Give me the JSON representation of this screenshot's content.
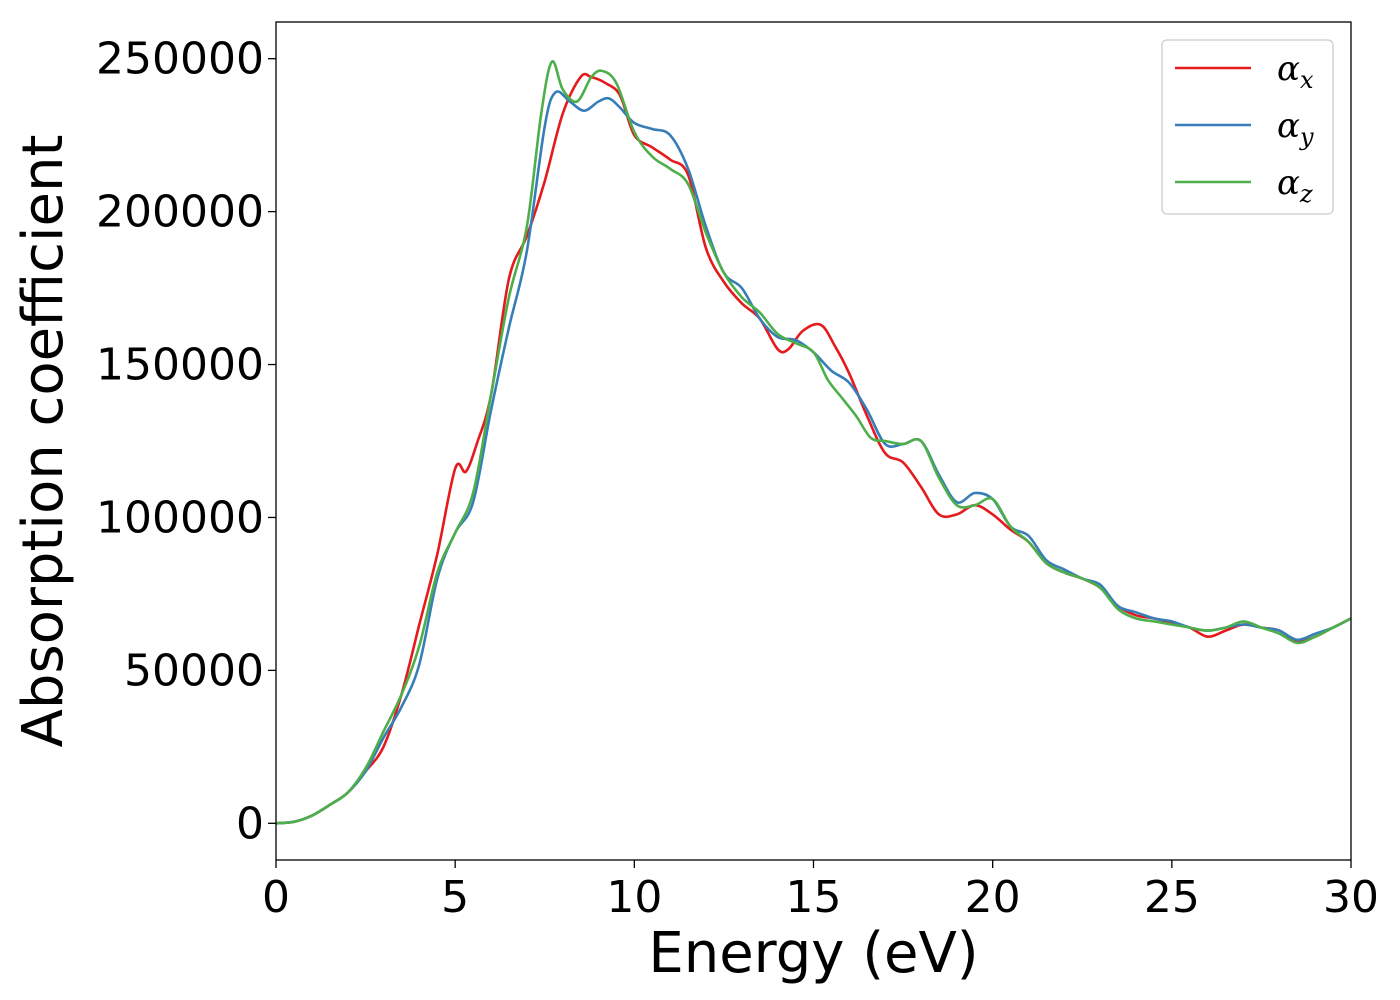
{
  "chart_data": {
    "type": "line",
    "xlabel": "Energy (eV)",
    "ylabel": "Absorption coefficient",
    "xlim": [
      0,
      30
    ],
    "ylim": [
      -12000,
      262000
    ],
    "xticks": [
      0,
      5,
      10,
      15,
      20,
      25,
      30
    ],
    "yticks": [
      0,
      50000,
      100000,
      150000,
      200000,
      250000
    ],
    "grid": false,
    "legend_position": "top-right",
    "series": [
      {
        "name": "α",
        "subscript": "x",
        "color": "#e41a1c",
        "x": [
          0,
          0.5,
          1.0,
          1.5,
          2.0,
          2.5,
          3.0,
          3.5,
          4.0,
          4.5,
          5.0,
          5.3,
          5.6,
          6.0,
          6.5,
          7.0,
          7.5,
          8.0,
          8.5,
          8.8,
          9.2,
          9.6,
          10.0,
          10.5,
          11.0,
          11.5,
          12.0,
          12.5,
          13.0,
          13.5,
          14.0,
          14.3,
          14.7,
          15.2,
          15.6,
          16.0,
          16.5,
          17.0,
          17.5,
          18.0,
          18.5,
          19.0,
          19.5,
          20.0,
          20.5,
          21.0,
          21.5,
          22.0,
          22.5,
          23.0,
          23.5,
          24.0,
          24.5,
          25.0,
          25.5,
          26.0,
          26.5,
          27.0,
          27.5,
          28.0,
          28.5,
          29.0,
          29.5,
          30.0
        ],
        "y": [
          0,
          500,
          2500,
          6000,
          10000,
          17000,
          25000,
          42000,
          65000,
          88000,
          116000,
          115000,
          124000,
          140000,
          178000,
          192000,
          210000,
          232000,
          244000,
          244000,
          242000,
          238000,
          225000,
          221000,
          217000,
          212000,
          188000,
          177000,
          170000,
          165000,
          155000,
          155000,
          161000,
          163000,
          156000,
          147000,
          133000,
          121000,
          118000,
          110000,
          101000,
          101000,
          104000,
          101000,
          96000,
          92000,
          85000,
          82000,
          80000,
          77000,
          71000,
          68000,
          67000,
          65500,
          64000,
          61000,
          63000,
          65000,
          64000,
          63000,
          59500,
          61000,
          64000,
          67000
        ]
      },
      {
        "name": "α",
        "subscript": "y",
        "color": "#377eb8",
        "x": [
          0,
          0.5,
          1.0,
          1.5,
          2.0,
          2.5,
          3.0,
          3.5,
          4.0,
          4.5,
          5.0,
          5.5,
          6.0,
          6.5,
          7.0,
          7.5,
          7.8,
          8.2,
          8.6,
          9.0,
          9.3,
          9.6,
          10.0,
          10.5,
          11.0,
          11.5,
          12.0,
          12.5,
          13.0,
          13.5,
          14.0,
          14.5,
          15.0,
          15.5,
          16.0,
          16.5,
          17.0,
          17.5,
          18.0,
          18.5,
          19.0,
          19.5,
          20.0,
          20.5,
          21.0,
          21.5,
          22.0,
          22.5,
          23.0,
          23.5,
          24.0,
          24.5,
          25.0,
          25.5,
          26.0,
          26.5,
          27.0,
          27.5,
          28.0,
          28.5,
          29.0,
          29.5,
          30.0
        ],
        "y": [
          0,
          500,
          2500,
          6000,
          10000,
          17000,
          28000,
          38000,
          52000,
          80000,
          95000,
          105000,
          135000,
          162000,
          187000,
          228000,
          239000,
          236000,
          233000,
          236000,
          237000,
          234000,
          229000,
          227000,
          225000,
          214000,
          195000,
          180000,
          175000,
          165000,
          159000,
          158000,
          154000,
          148000,
          144000,
          135000,
          124000,
          124000,
          125000,
          114000,
          105000,
          108000,
          106000,
          97000,
          94000,
          86000,
          83000,
          80000,
          78000,
          71000,
          69000,
          67000,
          66000,
          64000,
          63000,
          64000,
          65000,
          64000,
          63000,
          60000,
          62000,
          64000,
          67000
        ]
      },
      {
        "name": "α",
        "subscript": "z",
        "color": "#4daf4a",
        "x": [
          0,
          0.5,
          1.0,
          1.5,
          2.0,
          2.5,
          3.0,
          3.5,
          4.0,
          4.5,
          5.0,
          5.5,
          6.0,
          6.5,
          7.0,
          7.4,
          7.7,
          8.0,
          8.4,
          8.8,
          9.1,
          9.5,
          10.0,
          10.5,
          11.0,
          11.5,
          12.0,
          12.5,
          13.0,
          13.5,
          14.0,
          14.5,
          15.0,
          15.4,
          15.8,
          16.2,
          16.6,
          17.0,
          17.5,
          18.0,
          18.5,
          19.0,
          19.5,
          20.0,
          20.5,
          21.0,
          21.5,
          22.0,
          22.5,
          23.0,
          23.5,
          24.0,
          24.5,
          25.0,
          25.5,
          26.0,
          26.5,
          27.0,
          27.5,
          28.0,
          28.5,
          29.0,
          29.5,
          30.0
        ],
        "y": [
          0,
          500,
          2500,
          6000,
          10000,
          18000,
          30000,
          42000,
          58000,
          82000,
          95000,
          108000,
          140000,
          172000,
          195000,
          232000,
          249000,
          240000,
          236000,
          244000,
          246000,
          242000,
          226000,
          218000,
          214000,
          209000,
          193000,
          180000,
          172000,
          167000,
          160000,
          157000,
          154000,
          145000,
          139000,
          133000,
          126000,
          125000,
          124000,
          125000,
          113000,
          104000,
          104000,
          106000,
          97000,
          92000,
          85000,
          82000,
          80000,
          77000,
          70000,
          67000,
          66000,
          65000,
          64000,
          63000,
          64000,
          66000,
          64000,
          62000,
          59000,
          61000,
          64000,
          67000
        ]
      }
    ]
  }
}
